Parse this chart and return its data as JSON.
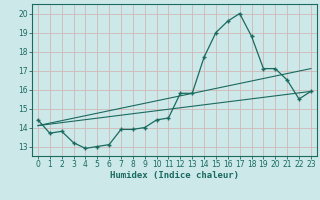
{
  "xlabel": "Humidex (Indice chaleur)",
  "background_color": "#cce8e8",
  "grid_color": "#b8d8d8",
  "line_color": "#1a6a60",
  "xlim": [
    -0.5,
    23.5
  ],
  "ylim": [
    12.5,
    20.5
  ],
  "yticks": [
    13,
    14,
    15,
    16,
    17,
    18,
    19,
    20
  ],
  "xticks": [
    0,
    1,
    2,
    3,
    4,
    5,
    6,
    7,
    8,
    9,
    10,
    11,
    12,
    13,
    14,
    15,
    16,
    17,
    18,
    19,
    20,
    21,
    22,
    23
  ],
  "curve_x": [
    0,
    1,
    2,
    3,
    4,
    5,
    6,
    7,
    8,
    9,
    10,
    11,
    12,
    13,
    14,
    15,
    16,
    17,
    18,
    19,
    20,
    21,
    22,
    23
  ],
  "curve_y": [
    14.4,
    13.7,
    13.8,
    13.2,
    12.9,
    13.0,
    13.1,
    13.9,
    13.9,
    14.0,
    14.4,
    14.5,
    15.8,
    15.8,
    17.7,
    19.0,
    19.6,
    20.0,
    18.8,
    17.1,
    17.1,
    16.5,
    15.5,
    15.9
  ],
  "line1_x": [
    0,
    23
  ],
  "line1_y": [
    14.1,
    15.9
  ],
  "line2_x": [
    0,
    23
  ],
  "line2_y": [
    14.1,
    17.1
  ]
}
